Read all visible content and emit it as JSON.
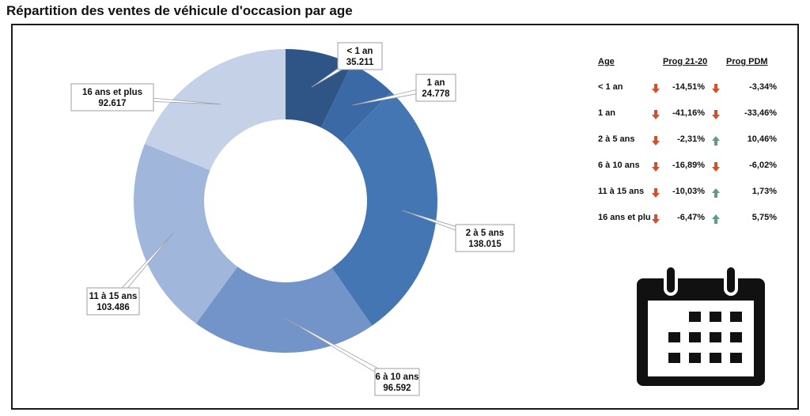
{
  "title": "Répartition des ventes de véhicule d'occasion par age",
  "chart_data": {
    "type": "pie",
    "variant": "donut",
    "categories": [
      "< 1 an",
      "1 an",
      "2 à 5 ans",
      "6 à 10 ans",
      "11 à 15 ans",
      "16 ans et plus"
    ],
    "values": [
      35211,
      24778,
      138015,
      96592,
      103486,
      92617
    ],
    "value_labels": [
      "35.211",
      "24.778",
      "138.015",
      "96.592",
      "103.486",
      "92.617"
    ],
    "colors": [
      "#2f5587",
      "#3b69a6",
      "#4576b4",
      "#7394c8",
      "#a0b6da",
      "#c4d1e6"
    ]
  },
  "table": {
    "headers": [
      "Age",
      "Prog 21-20",
      "Prog PDM"
    ],
    "rows": [
      {
        "age": "< 1 an",
        "prog_21_20": "-14,51%",
        "prog_21_20_trend": "down",
        "prog_pdm": "-3,34%",
        "prog_pdm_trend": "down"
      },
      {
        "age": "1 an",
        "prog_21_20": "-41,16%",
        "prog_21_20_trend": "down",
        "prog_pdm": "-33,46%",
        "prog_pdm_trend": "down"
      },
      {
        "age": "2 à 5 ans",
        "prog_21_20": "-2,31%",
        "prog_21_20_trend": "down",
        "prog_pdm": "10,46%",
        "prog_pdm_trend": "up"
      },
      {
        "age": "6 à 10 ans",
        "prog_21_20": "-16,89%",
        "prog_21_20_trend": "down",
        "prog_pdm": "-6,02%",
        "prog_pdm_trend": "down"
      },
      {
        "age": "11 à 15 ans",
        "prog_21_20": "-10,03%",
        "prog_21_20_trend": "down",
        "prog_pdm": "1,73%",
        "prog_pdm_trend": "up"
      },
      {
        "age": "16 ans et plus",
        "prog_21_20": "-6,47%",
        "prog_21_20_trend": "down",
        "prog_pdm": "5,75%",
        "prog_pdm_trend": "up"
      }
    ]
  },
  "colors": {
    "arrow_down": "#d4502a",
    "arrow_up": "#5e9e86",
    "icon": "#111111"
  },
  "icon": "calendar-icon"
}
